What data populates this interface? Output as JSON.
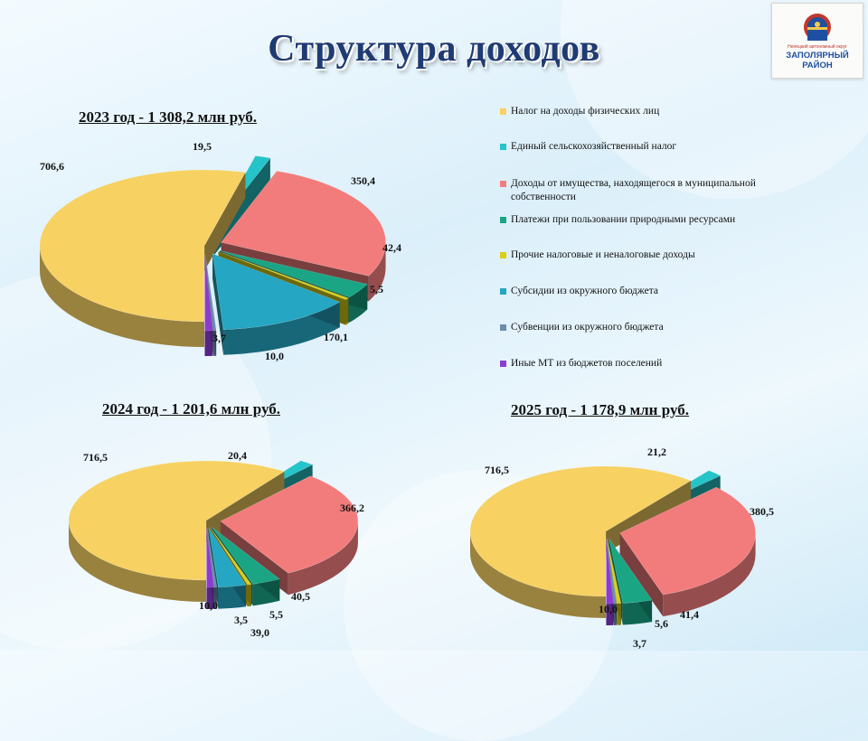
{
  "title": "Структура доходов",
  "logo": {
    "tagline": "Ненецкий автономный округ",
    "line1": "ЗАПОЛЯРНЫЙ",
    "line2": "РАЙОН"
  },
  "legend": [
    {
      "label": "Налог на доходы физических лиц",
      "color": "#f7d162"
    },
    {
      "label": "Единый сельскохозяйственный налог",
      "color": "#25c4c8"
    },
    {
      "label": "Доходы от имущества, находящегося в муниципальной собственности",
      "color": "#f27c7c"
    },
    {
      "label": "Платежи при пользовании природными ресурсами",
      "color": "#1aa585"
    },
    {
      "label": "Прочие налоговые и неналоговые доходы",
      "color": "#d8cf17"
    },
    {
      "label": "Субсидии из окружного бюджета",
      "color": "#25a6c2"
    },
    {
      "label": "Субвенции из окружного бюджета",
      "color": "#6a8cad"
    },
    {
      "label": "Иные МТ из бюджетов поселений",
      "color": "#8a3bd1"
    }
  ],
  "chart_data": [
    {
      "type": "pie",
      "title": "2023 год - 1 308,2 млн руб.",
      "categories": [
        "Налог на доходы физических лиц",
        "Единый сельскохозяйственный налог",
        "Доходы от имущества, находящегося в муниципальной собственности",
        "Платежи при пользовании природными ресурсами",
        "Прочие налоговые и неналоговые доходы",
        "Субсидии из окружного бюджета",
        "Субвенции из окружного бюджета",
        "Иные МТ из бюджетов поселений"
      ],
      "values": [
        706.6,
        19.5,
        350.4,
        42.4,
        5.5,
        170.1,
        3.7,
        10.0
      ],
      "labels": [
        "706,6",
        "19,5",
        "350,4",
        "42,4",
        "5,5",
        "170,1",
        "3,7",
        "10,0"
      ]
    },
    {
      "type": "pie",
      "title": "2024 год - 1 201,6 млн руб.",
      "categories": [
        "Налог на доходы физических лиц",
        "Единый сельскохозяйственный налог",
        "Доходы от имущества, находящегося в муниципальной собственности",
        "Платежи при пользовании природными ресурсами",
        "Прочие налоговые и неналоговые доходы",
        "Субсидии из окружного бюджета",
        "Субвенции из окружного бюджета",
        "Иные МТ из бюджетов поселений"
      ],
      "values": [
        716.5,
        20.4,
        366.2,
        40.5,
        5.5,
        39.0,
        3.5,
        10.0
      ],
      "labels": [
        "716,5",
        "20,4",
        "366,2",
        "40,5",
        "5,5",
        "39,0",
        "3,5",
        "10,0"
      ]
    },
    {
      "type": "pie",
      "title": "2025 год - 1 178,9 млн руб.",
      "categories": [
        "Налог на доходы физических лиц",
        "Единый сельскохозяйственный налог",
        "Доходы от имущества, находящегося в муниципальной собственности",
        "Платежи при пользовании природными ресурсами",
        "Прочие налоговые и неналоговые доходы",
        "Субвенции из окружного бюджета",
        "Иные МТ из бюджетов поселений"
      ],
      "values": [
        716.5,
        21.2,
        380.5,
        41.4,
        5.6,
        3.7,
        10.0
      ],
      "labels": [
        "716,5",
        "21,2",
        "380,5",
        "41,4",
        "5,6",
        "3,7",
        "10,0"
      ],
      "colors": [
        "#f7d162",
        "#25c4c8",
        "#f27c7c",
        "#1aa585",
        "#d8cf17",
        "#6a8cad",
        "#8a3bd1"
      ]
    }
  ]
}
